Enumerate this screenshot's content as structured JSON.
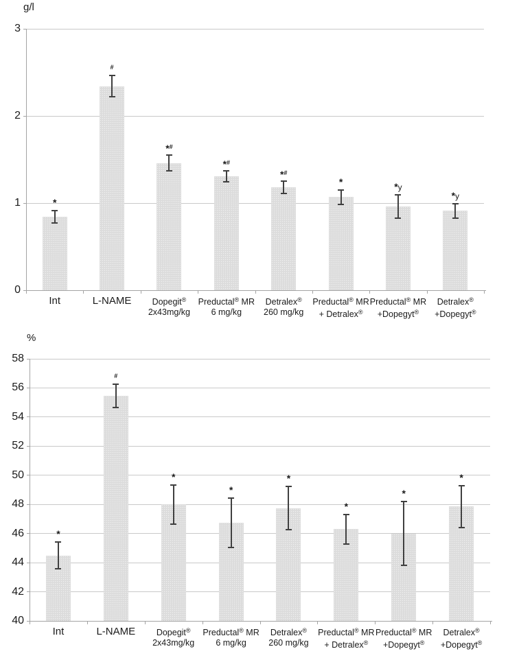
{
  "page": {
    "background": "#ffffff"
  },
  "colors": {
    "bar_fill": "#dcdcdc",
    "bar_dot": "#f2f2f2",
    "error_bar": "#3f3f3f",
    "gridline": "#c9c9c9",
    "axis": "#a3a3a3",
    "text": "#1a1a1a"
  },
  "chart_data": [
    {
      "type": "bar",
      "title": "",
      "ylabel": "g/l",
      "xlabel": "",
      "ylim": [
        0,
        3
      ],
      "ytick_step": 1,
      "grid": true,
      "legend": "none",
      "categories": [
        [
          "Int"
        ],
        [
          "L-NAME"
        ],
        [
          "Dopegit®",
          "2x43mg/kg"
        ],
        [
          "Preductal® MR",
          "6 mg/kg"
        ],
        [
          "Detralex®",
          "260 mg/kg"
        ],
        [
          "Preductal® MR",
          "+ Detralex®"
        ],
        [
          "Preductal® MR",
          "+Dopegyt®"
        ],
        [
          "Detralex®",
          "+Dopegyt®"
        ]
      ],
      "values": [
        0.84,
        2.34,
        1.46,
        1.31,
        1.18,
        1.07,
        0.96,
        0.91
      ],
      "errors": [
        0.08,
        0.13,
        0.1,
        0.07,
        0.08,
        0.09,
        0.14,
        0.09
      ],
      "annotations": [
        "*",
        "#",
        "*#",
        "*#",
        "*#",
        "*",
        "*y",
        "*y"
      ]
    },
    {
      "type": "bar",
      "title": "",
      "ylabel": "%",
      "xlabel": "",
      "ylim": [
        40,
        58
      ],
      "ytick_step": 2,
      "grid": true,
      "legend": "none",
      "categories": [
        [
          "Int"
        ],
        [
          "L-NAME"
        ],
        [
          "Dopegit®",
          "2x43mg/kg"
        ],
        [
          "Preductal® MR",
          "6 mg/kg"
        ],
        [
          "Detralex®",
          "260 mg/kg"
        ],
        [
          "Preductal® MR",
          "+ Detralex®"
        ],
        [
          "Preductal® MR",
          "+Dopegyt®"
        ],
        [
          "Detralex®",
          "+Dopegyt®"
        ]
      ],
      "values": [
        44.5,
        55.45,
        48.0,
        46.75,
        47.75,
        46.3,
        46.0,
        47.85
      ],
      "errors": [
        0.95,
        0.85,
        1.4,
        1.75,
        1.55,
        1.05,
        2.25,
        1.5
      ],
      "annotations": [
        "*",
        "#",
        "*",
        "*",
        "*",
        "*",
        "*",
        "*"
      ]
    }
  ]
}
